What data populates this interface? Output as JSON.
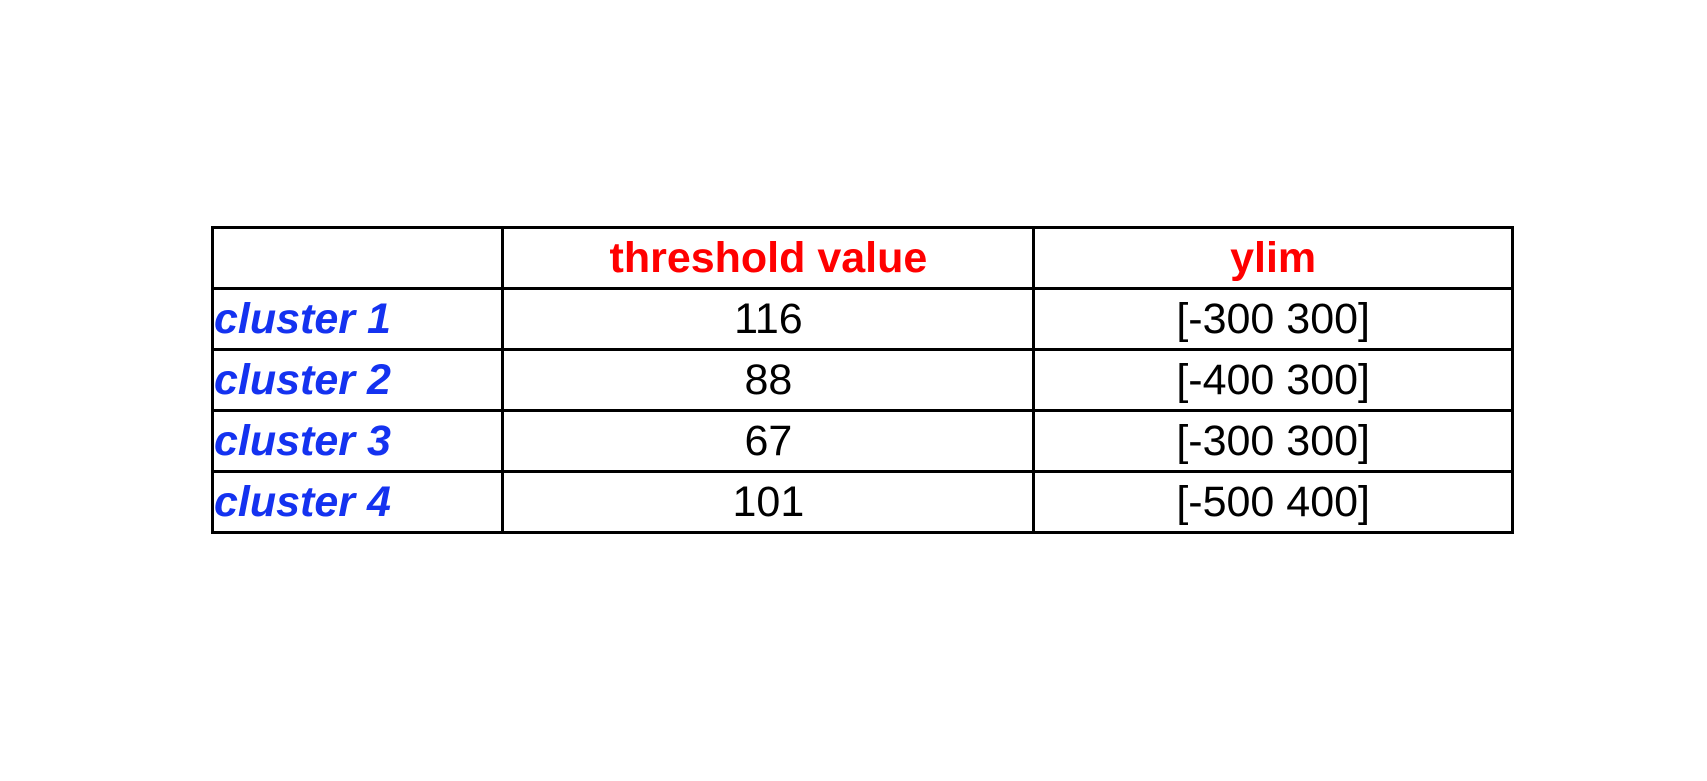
{
  "colors": {
    "header_text": "#ff0000",
    "row_label_text": "#1432f0",
    "cell_text": "#000000",
    "border": "#000000"
  },
  "table": {
    "columns": [
      "",
      "threshold value",
      "ylim"
    ],
    "rows": [
      {
        "label": "cluster 1",
        "threshold": "116",
        "ylim": "[-300 300]"
      },
      {
        "label": "cluster 2",
        "threshold": "88",
        "ylim": "[-400 300]"
      },
      {
        "label": "cluster 3",
        "threshold": "67",
        "ylim": "[-300 300]"
      },
      {
        "label": "cluster 4",
        "threshold": "101",
        "ylim": "[-500 400]"
      }
    ]
  }
}
